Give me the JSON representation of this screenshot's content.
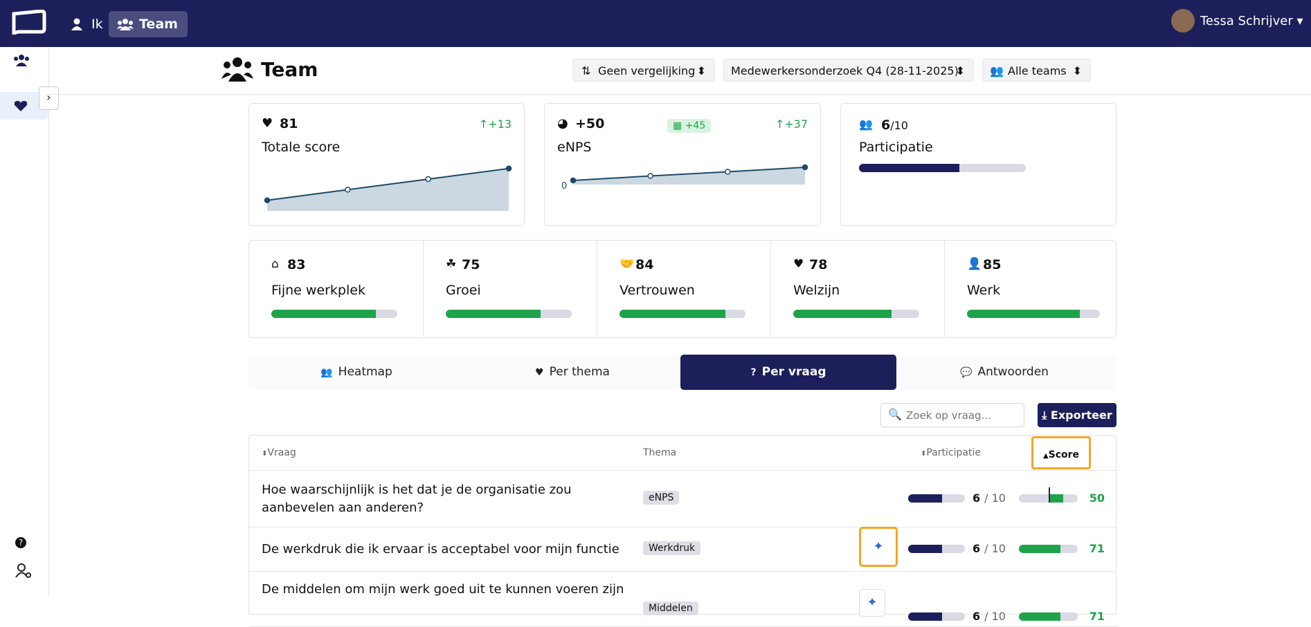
{
  "nav": {
    "items": [
      "Ik",
      "Team"
    ],
    "user": "Tessa Schrijver"
  },
  "header": {
    "title": "Team",
    "filters": [
      "Geen vergelijking",
      "Medewerkersonderzoek Q4 (28-11-2025)",
      "Alle teams"
    ]
  },
  "summary": {
    "total": {
      "score": 81,
      "delta": "+13",
      "label": "Totale score",
      "trend": {
        "values": [
          54,
          63,
          72,
          81
        ],
        "ylim": [
          45,
          85
        ]
      }
    },
    "enps": {
      "score": "+50",
      "badge": "+45",
      "delta": "+37",
      "label": "eNPS",
      "trend": {
        "values": [
          12,
          25,
          37,
          50
        ],
        "ylim": [
          0,
          100
        ],
        "yticks": [
          0
        ]
      }
    },
    "participation": {
      "value": 6,
      "total": 10,
      "label": "Participatie"
    }
  },
  "themes": {
    "range": [
      0,
      100
    ],
    "items": [
      {
        "score": 83,
        "label": "Fijne werkplek"
      },
      {
        "score": 75,
        "label": "Groei"
      },
      {
        "score": 84,
        "label": "Vertrouwen"
      },
      {
        "score": 78,
        "label": "Welzijn"
      },
      {
        "score": 85,
        "label": "Werk"
      }
    ]
  },
  "tabs": {
    "items": [
      "Heatmap",
      "Per thema",
      "Per vraag",
      "Antwoorden"
    ],
    "active": 2
  },
  "toolbar": {
    "search_placeholder": "Zoek op vraag...",
    "export": "Exporteer"
  },
  "table": {
    "columns": [
      "Vraag",
      "Thema",
      "Participatie",
      "Score"
    ],
    "sorted": 3,
    "rows": [
      {
        "question": "Hoe waarschijnlijk is het dat je de organisatie zou aanbevelen aan anderen?",
        "theme": "eNPS",
        "participation": 6,
        "participation_total": 10,
        "score": 50,
        "range": [
          -100,
          100
        ]
      },
      {
        "question": "De werkdruk die ik ervaar is acceptabel voor mijn functie",
        "theme": "Werkdruk",
        "participation": 6,
        "participation_total": 10,
        "score": 71,
        "range": [
          0,
          100
        ]
      },
      {
        "question": "De middelen om mijn werk goed uit te kunnen voeren zijn",
        "theme": "Middelen",
        "participation": 6,
        "participation_total": 10,
        "score": 71,
        "range": [
          0,
          100
        ]
      }
    ]
  }
}
